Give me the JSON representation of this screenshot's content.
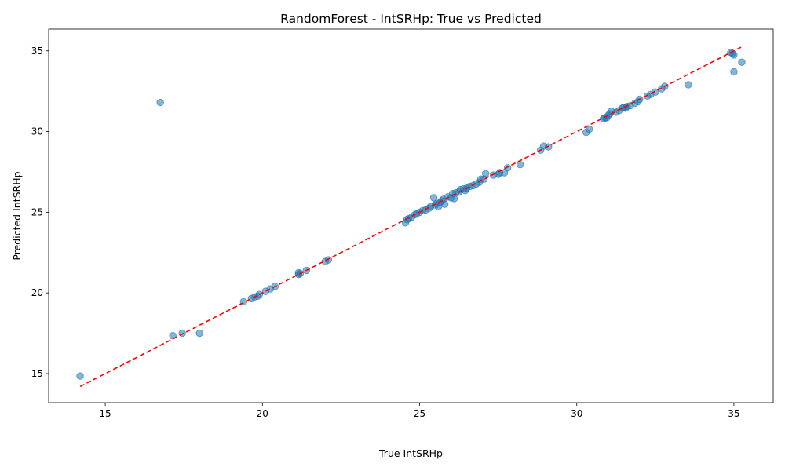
{
  "chart_data": {
    "type": "scatter",
    "title": "RandomForest - IntSRHp: True vs Predicted",
    "xlabel": "True IntSRHp",
    "ylabel": "Predicted IntSRHp",
    "xlim": [
      13.2,
      36.25
    ],
    "ylim": [
      13.2,
      36.35
    ],
    "xticks": [
      15,
      20,
      25,
      30,
      35
    ],
    "yticks": [
      15,
      20,
      25,
      30,
      35
    ],
    "grid": false,
    "point_color": "#1f77b4",
    "reference_line": {
      "from": [
        14.2,
        14.2
      ],
      "to": [
        35.25,
        35.25
      ],
      "color": "#ff0000",
      "style": "dashed"
    },
    "points": [
      [
        14.2,
        14.85
      ],
      [
        16.75,
        31.8
      ],
      [
        17.15,
        17.35
      ],
      [
        17.45,
        17.5
      ],
      [
        18.0,
        17.5
      ],
      [
        19.4,
        19.45
      ],
      [
        19.65,
        19.65
      ],
      [
        19.75,
        19.75
      ],
      [
        19.85,
        19.8
      ],
      [
        19.9,
        19.9
      ],
      [
        20.1,
        20.1
      ],
      [
        20.25,
        20.25
      ],
      [
        20.4,
        20.4
      ],
      [
        21.15,
        21.15
      ],
      [
        21.2,
        21.2
      ],
      [
        21.15,
        21.25
      ],
      [
        21.4,
        21.4
      ],
      [
        22.0,
        21.95
      ],
      [
        22.1,
        22.05
      ],
      [
        24.55,
        24.35
      ],
      [
        24.6,
        24.55
      ],
      [
        24.65,
        24.6
      ],
      [
        24.75,
        24.7
      ],
      [
        24.85,
        24.85
      ],
      [
        24.9,
        24.9
      ],
      [
        25.0,
        25.0
      ],
      [
        25.1,
        25.1
      ],
      [
        25.2,
        25.15
      ],
      [
        25.3,
        25.25
      ],
      [
        25.35,
        25.35
      ],
      [
        25.45,
        25.9
      ],
      [
        25.5,
        25.45
      ],
      [
        25.55,
        25.55
      ],
      [
        25.6,
        25.35
      ],
      [
        25.65,
        25.6
      ],
      [
        25.7,
        25.7
      ],
      [
        25.75,
        25.8
      ],
      [
        25.8,
        25.5
      ],
      [
        25.9,
        25.95
      ],
      [
        26.0,
        25.9
      ],
      [
        26.05,
        26.15
      ],
      [
        26.1,
        25.85
      ],
      [
        26.15,
        26.2
      ],
      [
        26.25,
        26.25
      ],
      [
        26.3,
        26.4
      ],
      [
        26.4,
        26.45
      ],
      [
        26.45,
        26.35
      ],
      [
        26.5,
        26.5
      ],
      [
        26.6,
        26.6
      ],
      [
        26.7,
        26.65
      ],
      [
        26.8,
        26.75
      ],
      [
        26.9,
        26.85
      ],
      [
        26.95,
        27.05
      ],
      [
        27.05,
        27.05
      ],
      [
        27.1,
        27.4
      ],
      [
        27.35,
        27.3
      ],
      [
        27.5,
        27.35
      ],
      [
        27.55,
        27.45
      ],
      [
        27.7,
        27.45
      ],
      [
        27.8,
        27.75
      ],
      [
        28.2,
        27.95
      ],
      [
        28.85,
        28.85
      ],
      [
        28.95,
        29.1
      ],
      [
        29.1,
        29.05
      ],
      [
        30.3,
        29.95
      ],
      [
        30.4,
        30.15
      ],
      [
        30.85,
        30.8
      ],
      [
        30.9,
        30.85
      ],
      [
        30.95,
        30.85
      ],
      [
        31.0,
        31.0
      ],
      [
        31.05,
        31.1
      ],
      [
        31.1,
        31.25
      ],
      [
        31.25,
        31.2
      ],
      [
        31.35,
        31.3
      ],
      [
        31.45,
        31.45
      ],
      [
        31.5,
        31.5
      ],
      [
        31.55,
        31.45
      ],
      [
        31.6,
        31.55
      ],
      [
        31.7,
        31.6
      ],
      [
        31.85,
        31.75
      ],
      [
        31.95,
        31.85
      ],
      [
        32.0,
        32.0
      ],
      [
        32.25,
        32.2
      ],
      [
        32.35,
        32.3
      ],
      [
        32.5,
        32.45
      ],
      [
        32.7,
        32.65
      ],
      [
        32.8,
        32.8
      ],
      [
        33.55,
        32.9
      ],
      [
        34.9,
        34.9
      ],
      [
        34.95,
        34.85
      ],
      [
        35.0,
        34.75
      ],
      [
        35.0,
        33.7
      ],
      [
        35.25,
        34.3
      ]
    ]
  }
}
